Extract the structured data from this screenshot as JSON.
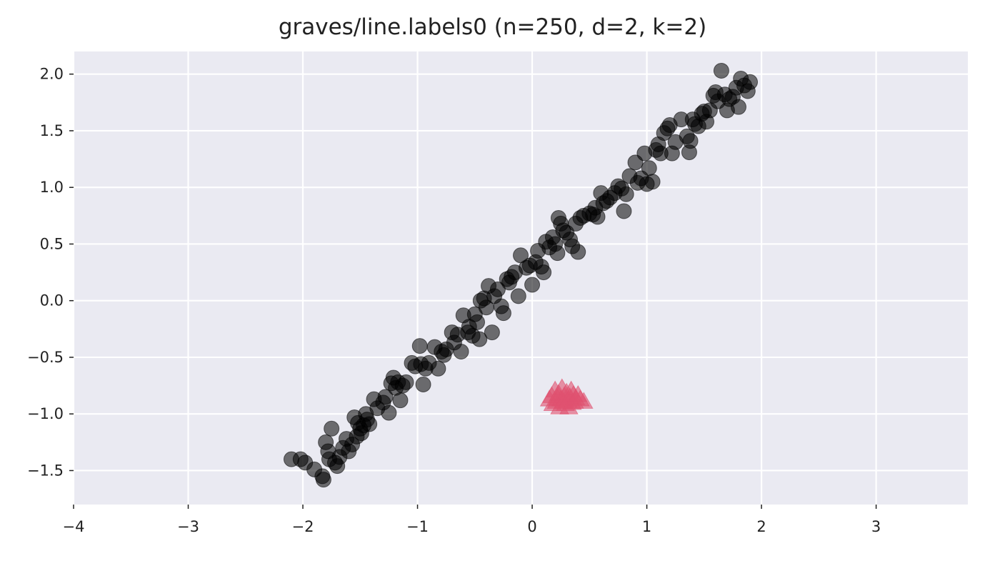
{
  "chart_data": {
    "type": "scatter",
    "title": "graves/line.labels0 (n=250, d=2, k=2)",
    "xlabel": "",
    "ylabel": "",
    "xlim": [
      -4.0,
      3.8
    ],
    "ylim": [
      -1.8,
      2.2
    ],
    "x_ticks": [
      -4,
      -3,
      -2,
      -1,
      0,
      1,
      2,
      3
    ],
    "x_tick_labels": [
      "−4",
      "−3",
      "−2",
      "−1",
      "0",
      "1",
      "2",
      "3"
    ],
    "y_ticks": [
      -1.5,
      -1.0,
      -0.5,
      0.0,
      0.5,
      1.0,
      1.5,
      2.0
    ],
    "y_tick_labels": [
      "−1.5",
      "−1.0",
      "−0.5",
      "0.0",
      "0.5",
      "1.0",
      "1.5",
      "2.0"
    ],
    "grid": true,
    "background": "#eaeaf2",
    "series": [
      {
        "marker": "circle",
        "color": "#000000",
        "opacity": 0.55,
        "points": [
          [
            -2.1,
            -1.4
          ],
          [
            -2.02,
            -1.4
          ],
          [
            -1.98,
            -1.43
          ],
          [
            -1.9,
            -1.49
          ],
          [
            -1.83,
            -1.55
          ],
          [
            -1.82,
            -1.58
          ],
          [
            -1.8,
            -1.25
          ],
          [
            -1.78,
            -1.33
          ],
          [
            -1.77,
            -1.4
          ],
          [
            -1.75,
            -1.13
          ],
          [
            -1.72,
            -1.43
          ],
          [
            -1.7,
            -1.46
          ],
          [
            -1.68,
            -1.38
          ],
          [
            -1.65,
            -1.3
          ],
          [
            -1.62,
            -1.22
          ],
          [
            -1.6,
            -1.33
          ],
          [
            -1.57,
            -1.27
          ],
          [
            -1.55,
            -1.03
          ],
          [
            -1.53,
            -1.2
          ],
          [
            -1.52,
            -1.08
          ],
          [
            -1.5,
            -1.13
          ],
          [
            -1.49,
            -1.17
          ],
          [
            -1.47,
            -1.1
          ],
          [
            -1.45,
            -1.0
          ],
          [
            -1.44,
            -1.05
          ],
          [
            -1.42,
            -1.09
          ],
          [
            -1.38,
            -0.87
          ],
          [
            -1.35,
            -0.95
          ],
          [
            -1.3,
            -0.9
          ],
          [
            -1.28,
            -0.85
          ],
          [
            -1.25,
            -0.99
          ],
          [
            -1.23,
            -0.73
          ],
          [
            -1.21,
            -0.68
          ],
          [
            -1.19,
            -0.77
          ],
          [
            -1.17,
            -0.72
          ],
          [
            -1.15,
            -0.88
          ],
          [
            -1.13,
            -0.75
          ],
          [
            -1.1,
            -0.72
          ],
          [
            -1.05,
            -0.55
          ],
          [
            -1.02,
            -0.58
          ],
          [
            -0.98,
            -0.4
          ],
          [
            -0.97,
            -0.56
          ],
          [
            -0.95,
            -0.74
          ],
          [
            -0.93,
            -0.6
          ],
          [
            -0.9,
            -0.55
          ],
          [
            -0.85,
            -0.41
          ],
          [
            -0.82,
            -0.6
          ],
          [
            -0.79,
            -0.45
          ],
          [
            -0.77,
            -0.48
          ],
          [
            -0.75,
            -0.43
          ],
          [
            -0.7,
            -0.28
          ],
          [
            -0.68,
            -0.37
          ],
          [
            -0.65,
            -0.3
          ],
          [
            -0.62,
            -0.45
          ],
          [
            -0.6,
            -0.13
          ],
          [
            -0.56,
            -0.28
          ],
          [
            -0.55,
            -0.23
          ],
          [
            -0.52,
            -0.31
          ],
          [
            -0.5,
            -0.12
          ],
          [
            -0.48,
            -0.19
          ],
          [
            -0.46,
            -0.34
          ],
          [
            -0.45,
            0.0
          ],
          [
            -0.42,
            0.02
          ],
          [
            -0.4,
            -0.06
          ],
          [
            -0.38,
            0.13
          ],
          [
            -0.35,
            -0.28
          ],
          [
            -0.33,
            0.04
          ],
          [
            -0.3,
            0.1
          ],
          [
            -0.27,
            -0.05
          ],
          [
            -0.25,
            -0.11
          ],
          [
            -0.22,
            0.19
          ],
          [
            -0.2,
            0.16
          ],
          [
            -0.18,
            0.21
          ],
          [
            -0.15,
            0.25
          ],
          [
            -0.12,
            0.04
          ],
          [
            -0.1,
            0.4
          ],
          [
            -0.05,
            0.29
          ],
          [
            -0.02,
            0.31
          ],
          [
            0.0,
            0.14
          ],
          [
            0.03,
            0.34
          ],
          [
            0.05,
            0.44
          ],
          [
            0.08,
            0.3
          ],
          [
            0.1,
            0.25
          ],
          [
            0.12,
            0.52
          ],
          [
            0.15,
            0.47
          ],
          [
            0.18,
            0.56
          ],
          [
            0.2,
            0.5
          ],
          [
            0.22,
            0.42
          ],
          [
            0.23,
            0.73
          ],
          [
            0.25,
            0.68
          ],
          [
            0.27,
            0.62
          ],
          [
            0.3,
            0.6
          ],
          [
            0.33,
            0.54
          ],
          [
            0.35,
            0.48
          ],
          [
            0.38,
            0.68
          ],
          [
            0.4,
            0.43
          ],
          [
            0.42,
            0.73
          ],
          [
            0.45,
            0.75
          ],
          [
            0.5,
            0.77
          ],
          [
            0.53,
            0.76
          ],
          [
            0.55,
            0.82
          ],
          [
            0.57,
            0.74
          ],
          [
            0.6,
            0.95
          ],
          [
            0.62,
            0.86
          ],
          [
            0.65,
            0.88
          ],
          [
            0.68,
            0.91
          ],
          [
            0.72,
            0.95
          ],
          [
            0.75,
            1.01
          ],
          [
            0.78,
            0.99
          ],
          [
            0.8,
            0.79
          ],
          [
            0.82,
            0.94
          ],
          [
            0.85,
            1.1
          ],
          [
            0.9,
            1.22
          ],
          [
            0.92,
            1.04
          ],
          [
            0.95,
            1.08
          ],
          [
            0.98,
            1.3
          ],
          [
            1.0,
            1.03
          ],
          [
            1.02,
            1.17
          ],
          [
            1.05,
            1.05
          ],
          [
            1.08,
            1.33
          ],
          [
            1.1,
            1.38
          ],
          [
            1.12,
            1.3
          ],
          [
            1.15,
            1.48
          ],
          [
            1.18,
            1.52
          ],
          [
            1.2,
            1.55
          ],
          [
            1.22,
            1.3
          ],
          [
            1.25,
            1.4
          ],
          [
            1.3,
            1.6
          ],
          [
            1.35,
            1.45
          ],
          [
            1.37,
            1.31
          ],
          [
            1.38,
            1.41
          ],
          [
            1.4,
            1.6
          ],
          [
            1.42,
            1.56
          ],
          [
            1.45,
            1.54
          ],
          [
            1.48,
            1.65
          ],
          [
            1.5,
            1.67
          ],
          [
            1.52,
            1.58
          ],
          [
            1.55,
            1.68
          ],
          [
            1.58,
            1.81
          ],
          [
            1.6,
            1.84
          ],
          [
            1.62,
            1.76
          ],
          [
            1.65,
            2.03
          ],
          [
            1.68,
            1.82
          ],
          [
            1.7,
            1.68
          ],
          [
            1.72,
            1.78
          ],
          [
            1.75,
            1.8
          ],
          [
            1.78,
            1.88
          ],
          [
            1.8,
            1.71
          ],
          [
            1.82,
            1.96
          ],
          [
            1.85,
            1.9
          ],
          [
            1.88,
            1.85
          ],
          [
            1.9,
            1.93
          ]
        ]
      },
      {
        "marker": "triangle",
        "color": "#e0526f",
        "opacity": 0.6,
        "points": [
          [
            0.15,
            -0.88
          ],
          [
            0.17,
            -0.85
          ],
          [
            0.18,
            -0.92
          ],
          [
            0.2,
            -0.8
          ],
          [
            0.21,
            -0.9
          ],
          [
            0.22,
            -0.87
          ],
          [
            0.23,
            -0.83
          ],
          [
            0.24,
            -0.95
          ],
          [
            0.25,
            -0.88
          ],
          [
            0.26,
            -0.78
          ],
          [
            0.27,
            -0.9
          ],
          [
            0.28,
            -0.85
          ],
          [
            0.29,
            -0.92
          ],
          [
            0.3,
            -0.82
          ],
          [
            0.31,
            -0.89
          ],
          [
            0.32,
            -0.95
          ],
          [
            0.33,
            -0.86
          ],
          [
            0.34,
            -0.8
          ],
          [
            0.35,
            -0.91
          ],
          [
            0.36,
            -0.84
          ],
          [
            0.37,
            -0.9
          ],
          [
            0.38,
            -0.87
          ],
          [
            0.4,
            -0.84
          ],
          [
            0.42,
            -0.88
          ],
          [
            0.45,
            -0.9
          ]
        ]
      }
    ]
  }
}
